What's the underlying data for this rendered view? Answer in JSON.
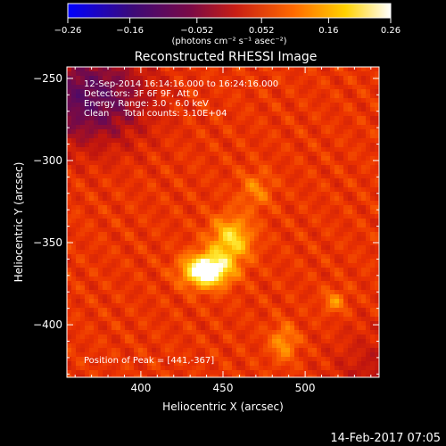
{
  "chart_data": {
    "type": "heatmap",
    "title": "Reconstructed RHESSI Image",
    "xlabel": "Heliocentric X (arcsec)",
    "ylabel": "Heliocentric Y (arcsec)",
    "xlim": [
      355,
      545
    ],
    "ylim": [
      -432,
      -243
    ],
    "x_ticks": [
      400,
      450,
      500
    ],
    "y_ticks": [
      -250,
      -300,
      -350,
      -400
    ],
    "colorbar": {
      "ticks": [
        -0.26,
        -0.16,
        -0.052,
        0.052,
        0.16,
        0.26
      ],
      "tick_labels": [
        "−0.26",
        "−0.16",
        "−0.052",
        "0.052",
        "0.16",
        "0.26"
      ],
      "unit_text": "(photons cm⁻² s⁻¹ asec⁻²)",
      "range": [
        -0.26,
        0.26
      ]
    },
    "annotations": [
      "12-Sep-2014 16:14:16.000 to 16:24:16.000",
      "Detectors: 3F 6F 9F, Att 0",
      "Energy Range: 3.0 - 6.0 keV",
      "Clean     Total counts: 3.10E+04"
    ],
    "peak_text": "Position of Peak = [441,-367]",
    "peak": [
      441,
      -367
    ],
    "sources": [
      {
        "x": 440,
        "y": -367,
        "sx": 10,
        "sy": 7,
        "amp": 0.26
      },
      {
        "x": 455,
        "y": -348,
        "sx": 9,
        "sy": 10,
        "amp": 0.15
      },
      {
        "x": 470,
        "y": -318,
        "sx": 7,
        "sy": 8,
        "amp": 0.07
      },
      {
        "x": 518,
        "y": -386,
        "sx": 5,
        "sy": 5,
        "amp": 0.08
      },
      {
        "x": 487,
        "y": -411,
        "sx": 6,
        "sy": 8,
        "amp": 0.09
      }
    ],
    "background": 0.06,
    "negative_region": {
      "x": 368,
      "y": -262,
      "sx": 25,
      "sy": 20,
      "amp": -0.16
    }
  },
  "footer_date": "14-Feb-2017 07:05"
}
